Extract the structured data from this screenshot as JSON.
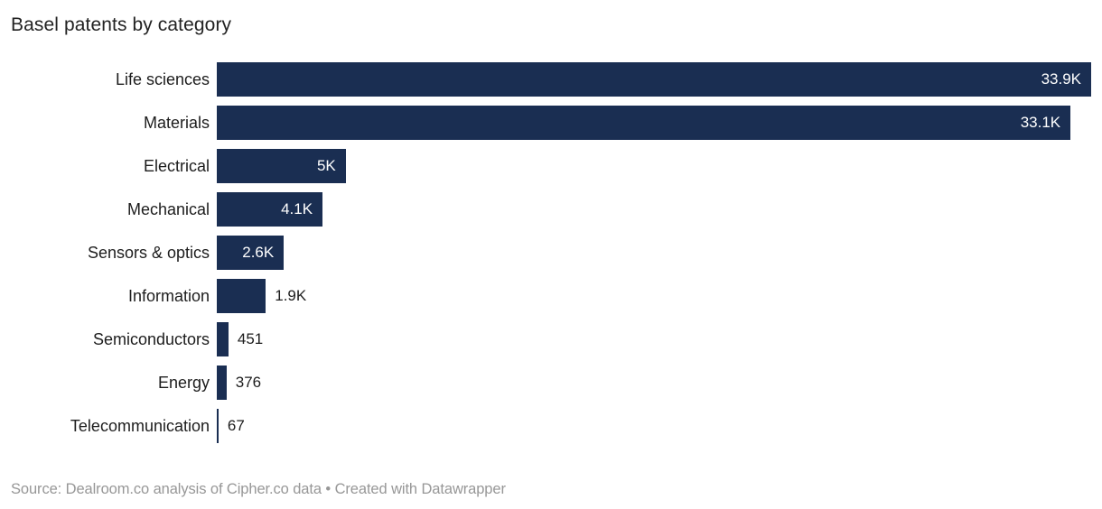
{
  "title": "Basel patents by category",
  "footer": {
    "source": "Source: Dealroom.co analysis of Cipher.co data",
    "separator": " • ",
    "attribution": "Created with Datawrapper"
  },
  "colors": {
    "bar": "#1a2e52",
    "title_text": "#222222",
    "category_label": "#1d1d1d",
    "value_inside": "#ffffff",
    "value_outside": "#1d1d1d",
    "footer_text": "#979797",
    "background": "#ffffff"
  },
  "chart_data": {
    "type": "bar",
    "orientation": "horizontal",
    "title": "Basel patents by category",
    "xlabel": "",
    "ylabel": "",
    "max_value": 33900,
    "grid": false,
    "legend": false,
    "categories": [
      "Life sciences",
      "Materials",
      "Electrical",
      "Mechanical",
      "Sensors & optics",
      "Information",
      "Semiconductors",
      "Energy",
      "Telecommunication"
    ],
    "values": [
      33900,
      33100,
      5000,
      4100,
      2600,
      1900,
      451,
      376,
      67
    ],
    "value_labels": [
      "33.9K",
      "33.1K",
      "5K",
      "4.1K",
      "2.6K",
      "1.9K",
      "451",
      "376",
      "67"
    ],
    "label_inside": [
      true,
      true,
      true,
      true,
      true,
      false,
      false,
      false,
      false
    ]
  }
}
